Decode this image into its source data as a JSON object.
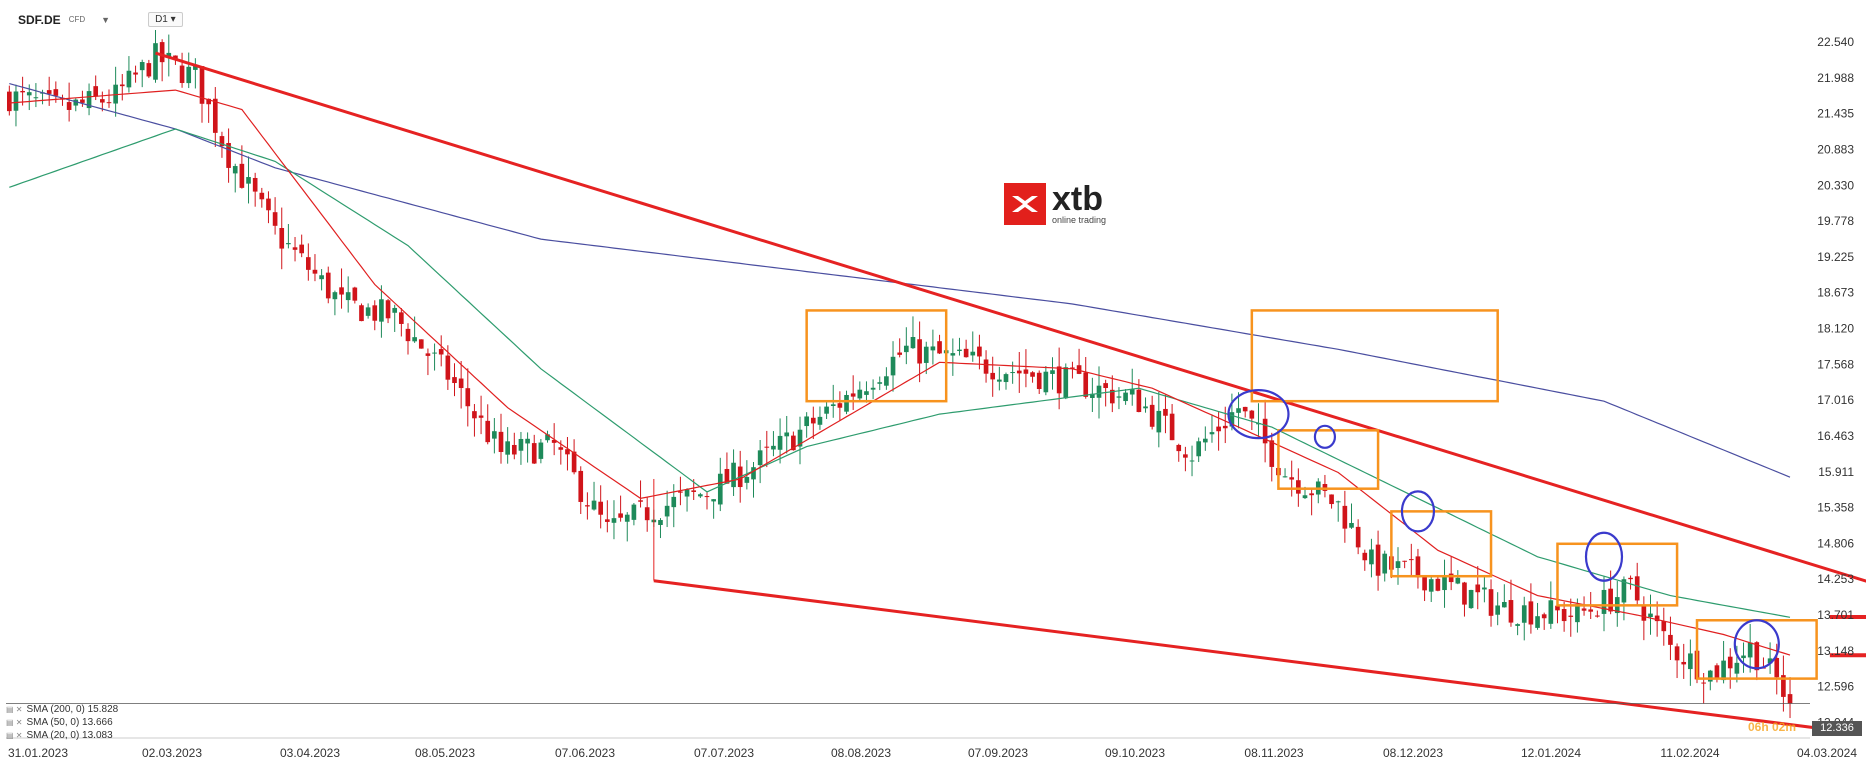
{
  "header": {
    "symbol": "SDF.DE",
    "instrument_type": "CFD",
    "timeframe": "D1"
  },
  "logo": {
    "brand": "xtb",
    "tagline": "online trading"
  },
  "legend": [
    {
      "label": "SMA (200, 0) 15.828",
      "color": "#4a4ea0"
    },
    {
      "label": "SMA (50, 0) 13.666",
      "color": "#2e9c6e"
    },
    {
      "label": "SMA (20, 0) 13.083",
      "color": "#e02020"
    }
  ],
  "current_price_label": "12.336",
  "countdown_label": "06h 02m",
  "chart_data": {
    "type": "candlestick",
    "title": "",
    "y_ticks": [
      "22.540",
      "21.988",
      "21.435",
      "20.883",
      "20.330",
      "19.778",
      "19.225",
      "18.673",
      "18.120",
      "17.568",
      "17.016",
      "16.463",
      "15.911",
      "15.358",
      "14.806",
      "14.253",
      "13.701",
      "13.148",
      "12.596",
      "12.044"
    ],
    "y_tick_values": [
      22.54,
      21.988,
      21.435,
      20.883,
      20.33,
      19.778,
      19.225,
      18.673,
      18.12,
      17.568,
      17.016,
      16.463,
      15.911,
      15.358,
      14.806,
      14.253,
      13.701,
      13.148,
      12.596,
      12.044
    ],
    "x_ticks": [
      "31.01.2023",
      "02.03.2023",
      "03.04.2023",
      "08.05.2023",
      "07.06.2023",
      "07.07.2023",
      "08.08.2023",
      "07.09.2023",
      "09.10.2023",
      "08.11.2023",
      "08.12.2023",
      "12.01.2024",
      "11.02.2024",
      "04.03.2024"
    ],
    "y_range": [
      11.85,
      22.85
    ],
    "close_waypoints": [
      [
        0,
        21.7
      ],
      [
        8,
        21.5
      ],
      [
        16,
        21.7
      ],
      [
        22,
        22.3
      ],
      [
        28,
        22.0
      ],
      [
        33,
        20.8
      ],
      [
        40,
        19.6
      ],
      [
        50,
        18.5
      ],
      [
        58,
        18.3
      ],
      [
        66,
        17.4
      ],
      [
        74,
        16.2
      ],
      [
        82,
        16.3
      ],
      [
        90,
        15.0
      ],
      [
        96,
        15.3
      ],
      [
        105,
        15.6
      ],
      [
        112,
        16.0
      ],
      [
        124,
        16.9
      ],
      [
        135,
        17.8
      ],
      [
        145,
        17.6
      ],
      [
        160,
        17.3
      ],
      [
        170,
        17.0
      ],
      [
        178,
        16.2
      ],
      [
        185,
        16.9
      ],
      [
        192,
        15.9
      ],
      [
        200,
        15.4
      ],
      [
        205,
        14.5
      ],
      [
        213,
        14.3
      ],
      [
        225,
        13.8
      ],
      [
        236,
        13.7
      ],
      [
        244,
        14.1
      ],
      [
        250,
        13.2
      ],
      [
        256,
        12.8
      ],
      [
        262,
        13.2
      ],
      [
        266,
        12.7
      ],
      [
        268,
        12.336
      ]
    ],
    "sma200": {
      "label": "SMA (200, 0)",
      "value": 15.828,
      "points": [
        [
          0,
          21.9
        ],
        [
          25,
          21.2
        ],
        [
          40,
          20.6
        ],
        [
          80,
          19.5
        ],
        [
          120,
          19.0
        ],
        [
          160,
          18.5
        ],
        [
          200,
          17.8
        ],
        [
          240,
          17.0
        ],
        [
          268,
          15.828
        ]
      ]
    },
    "sma50": {
      "label": "SMA (50, 0)",
      "value": 13.666,
      "points": [
        [
          0,
          20.3
        ],
        [
          25,
          21.2
        ],
        [
          40,
          20.7
        ],
        [
          60,
          19.4
        ],
        [
          80,
          17.5
        ],
        [
          105,
          15.6
        ],
        [
          120,
          16.3
        ],
        [
          140,
          16.8
        ],
        [
          170,
          17.2
        ],
        [
          190,
          16.6
        ],
        [
          210,
          15.6
        ],
        [
          230,
          14.6
        ],
        [
          250,
          14.0
        ],
        [
          268,
          13.666
        ]
      ]
    },
    "sma20": {
      "label": "SMA (20, 0)",
      "value": 13.083,
      "points": [
        [
          0,
          21.6
        ],
        [
          25,
          21.8
        ],
        [
          35,
          21.5
        ],
        [
          55,
          18.8
        ],
        [
          75,
          16.9
        ],
        [
          95,
          15.5
        ],
        [
          110,
          15.8
        ],
        [
          125,
          16.7
        ],
        [
          140,
          17.6
        ],
        [
          160,
          17.5
        ],
        [
          172,
          17.2
        ],
        [
          185,
          16.6
        ],
        [
          200,
          15.9
        ],
        [
          215,
          14.7
        ],
        [
          230,
          14.0
        ],
        [
          245,
          13.7
        ],
        [
          258,
          13.4
        ],
        [
          268,
          13.083
        ]
      ]
    },
    "annotations": {
      "downtrend_line": [
        [
          22,
          22.37
        ],
        [
          296,
          13.7
        ]
      ],
      "support_line": [
        [
          97,
          14.23
        ],
        [
          275,
          11.92
        ]
      ],
      "level_lines": [
        13.67,
        13.08
      ],
      "boxes": [
        [
          120,
          141,
          17.0,
          18.4
        ],
        [
          187,
          224,
          17.0,
          18.4
        ],
        [
          191,
          206,
          15.65,
          16.55
        ],
        [
          208,
          223,
          14.3,
          15.3
        ],
        [
          233,
          251,
          13.85,
          14.8
        ],
        [
          254,
          272,
          12.72,
          13.62
        ]
      ],
      "circles": [
        [
          188,
          16.8
        ],
        [
          198,
          16.45
        ],
        [
          212,
          15.3
        ],
        [
          240,
          14.6
        ],
        [
          263,
          13.25
        ]
      ]
    }
  }
}
